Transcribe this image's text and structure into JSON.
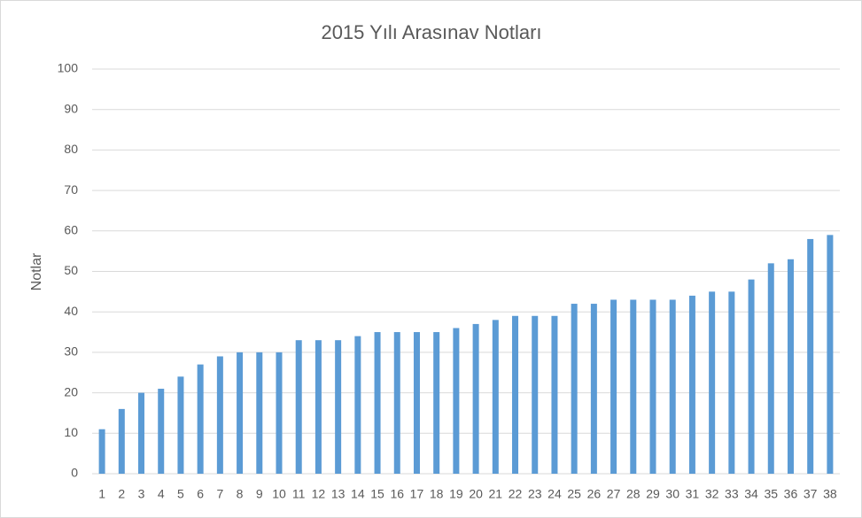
{
  "chart_data": {
    "type": "bar",
    "title": "2015 Yılı Arasınav Notları",
    "y_label": "Notlar",
    "categories": [
      "1",
      "2",
      "3",
      "4",
      "5",
      "6",
      "7",
      "8",
      "9",
      "10",
      "11",
      "12",
      "13",
      "14",
      "15",
      "16",
      "17",
      "18",
      "19",
      "20",
      "21",
      "22",
      "23",
      "24",
      "25",
      "26",
      "27",
      "28",
      "29",
      "30",
      "31",
      "32",
      "33",
      "34",
      "35",
      "36",
      "37",
      "38"
    ],
    "values": [
      11,
      16,
      20,
      21,
      24,
      27,
      29,
      30,
      30,
      30,
      33,
      33,
      33,
      34,
      35,
      35,
      35,
      35,
      36,
      37,
      38,
      39,
      39,
      39,
      42,
      42,
      43,
      43,
      43,
      43,
      44,
      45,
      45,
      48,
      52,
      53,
      58,
      59
    ],
    "color": "#5b9bd5",
    "ylim": [
      0,
      100
    ],
    "yticks": [
      0,
      10,
      20,
      30,
      40,
      50,
      60,
      70,
      80,
      90,
      100
    ],
    "grid": true
  }
}
